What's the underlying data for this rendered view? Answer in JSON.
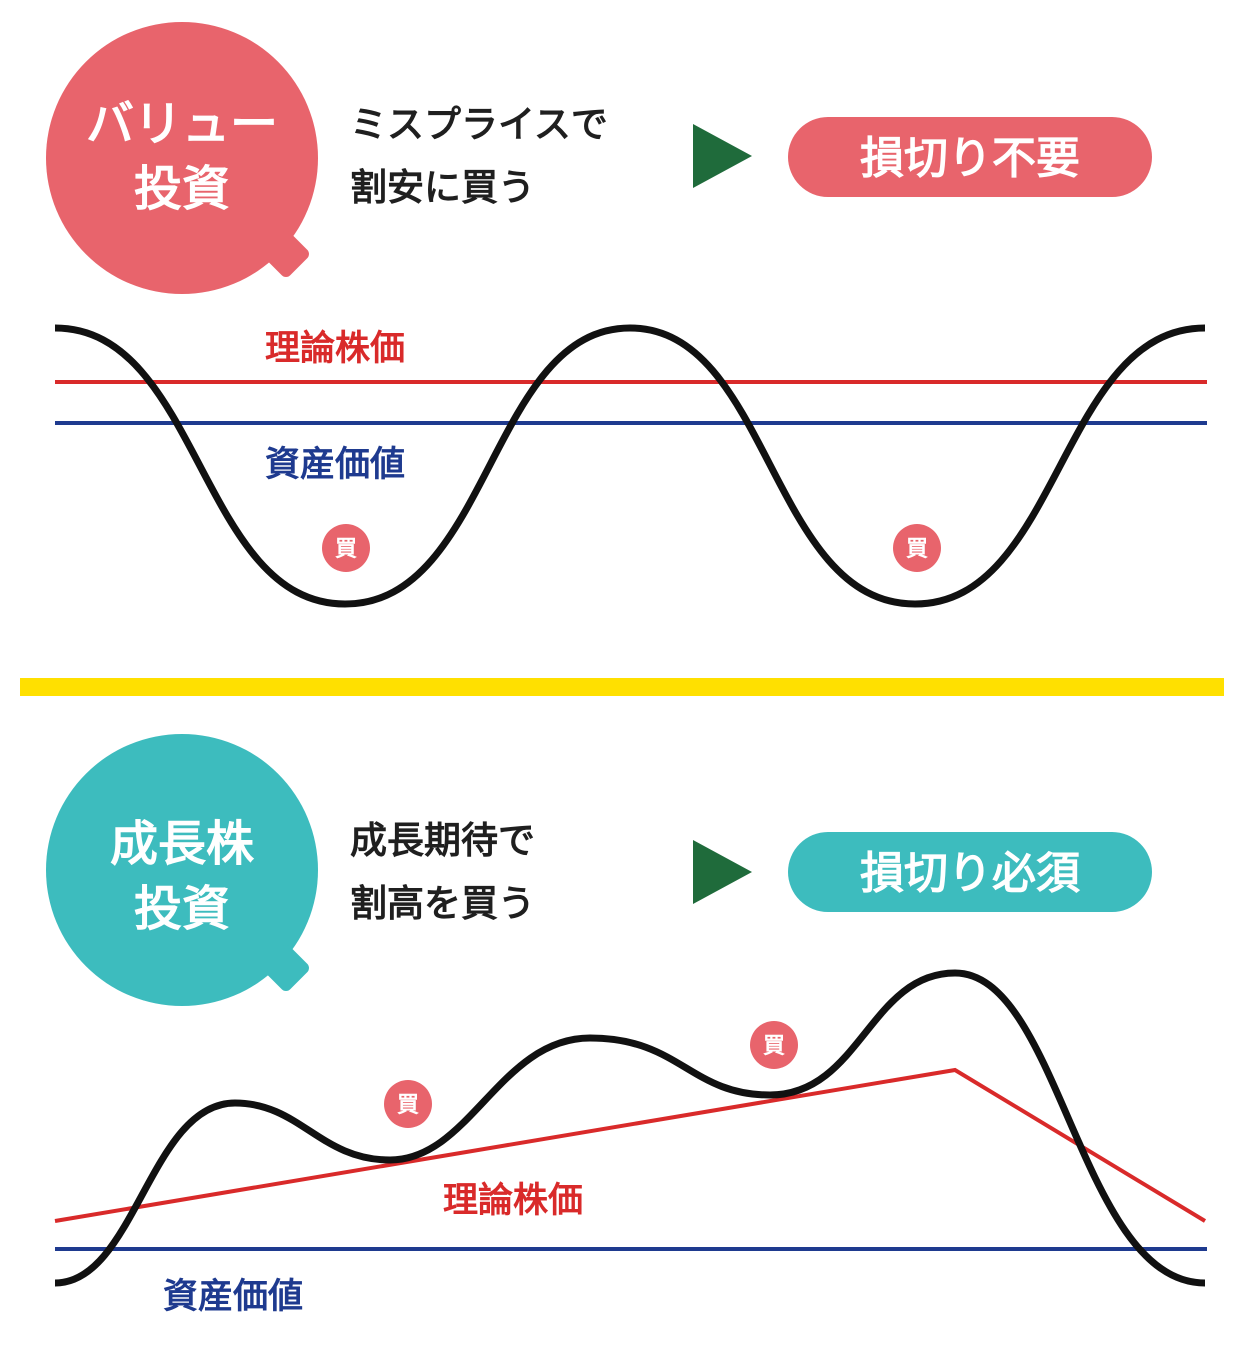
{
  "colors": {
    "value_accent": "#e8646c",
    "growth_accent": "#3dbcbe",
    "arrow": "#1f6b3b",
    "theoretical_line": "#d92a2a",
    "asset_line": "#1e3a8f",
    "divider": "#ffe000",
    "price_curve": "#111111"
  },
  "value": {
    "bubble_line1": "バリュー",
    "bubble_line2": "投資",
    "desc_line1": "ミスプライスで",
    "desc_line2": "割安に買う",
    "result": "損切り不要",
    "theoretical_label": "理論株価",
    "asset_label": "資産価値",
    "buy_marks": [
      "買",
      "買"
    ]
  },
  "growth": {
    "bubble_line1": "成長株",
    "bubble_line2": "投資",
    "desc_line1": "成長期待で",
    "desc_line2": "割高を買う",
    "result": "損切り必須",
    "theoretical_label": "理論株価",
    "asset_label": "資産価値",
    "buy_marks": [
      "買",
      "買"
    ]
  }
}
